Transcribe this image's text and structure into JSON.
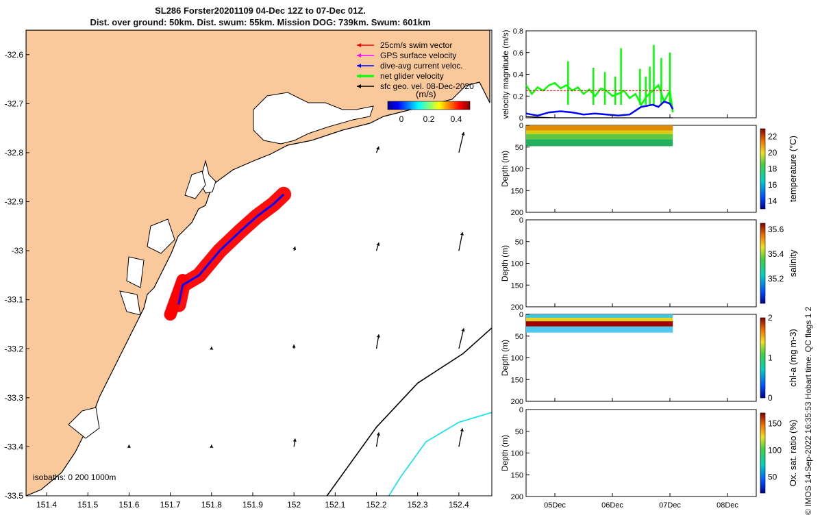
{
  "header": {
    "line1": "SL286 Forster20201109 04-Dec 12Z to 07-Dec 01Z.",
    "line2": "Dist. over ground: 50km. Dist. swum: 55km. Mission DOG: 739km. Swum: 601km"
  },
  "side_note": "© IMOS 14-Sep-2022 16:35:53 Hobart time. QC flags 1  2",
  "colors": {
    "land": "#F9C89B",
    "swim": "#FF0000",
    "gps": "#FF00FF",
    "current": "#0000FF",
    "net": "#00FF00",
    "isobath_200": "#000000",
    "isobath_1000": "#00E5EE"
  },
  "chart_data": [
    {
      "type": "scatter",
      "name": "map",
      "x_ticks": [
        "151.4",
        "151.5",
        "151.6",
        "151.7",
        "151.8",
        "151.9",
        "152",
        "152.1",
        "152.2",
        "152.3",
        "152.4"
      ],
      "y_ticks": [
        "-32.6",
        "-32.7",
        "-32.8",
        "-32.9",
        "-33",
        "-33.1",
        "-33.2",
        "-33.3",
        "-33.4",
        "-33.5"
      ],
      "xlim": [
        151.35,
        152.48
      ],
      "ylim": [
        -33.5,
        -32.55
      ],
      "legend": [
        {
          "label": "25cm/s swim vector",
          "color": "#FF0000"
        },
        {
          "label": "GPS surface velocity",
          "color": "#FF00FF"
        },
        {
          "label": "dive-avg current veloc.",
          "color": "#0000FF"
        },
        {
          "label": "net glider velocity",
          "color": "#00FF00"
        },
        {
          "label": "sfc geo. vel. 08-Dec-2020",
          "color": "#000000"
        }
      ],
      "colorbar": {
        "label": "(m/s)",
        "ticks": [
          "0",
          "0.2",
          "0.4"
        ],
        "range": [
          -0.1,
          0.5
        ]
      },
      "isobaths_label": "isobaths: 0   200  1000m",
      "track": [
        [
          151.72,
          -33.11
        ],
        [
          151.73,
          -33.07
        ],
        [
          151.77,
          -33.05
        ],
        [
          151.82,
          -33.0
        ],
        [
          151.87,
          -32.96
        ],
        [
          151.91,
          -32.93
        ],
        [
          151.95,
          -32.905
        ],
        [
          151.975,
          -32.885
        ]
      ],
      "isobath_200": [
        [
          152.08,
          -33.5
        ],
        [
          152.2,
          -33.36
        ],
        [
          152.3,
          -33.27
        ],
        [
          152.41,
          -33.21
        ],
        [
          152.49,
          -33.15
        ],
        [
          152.48,
          -33.14
        ]
      ],
      "isobath_1000": [
        [
          152.23,
          -33.5
        ],
        [
          152.26,
          -33.46
        ],
        [
          152.32,
          -33.39
        ],
        [
          152.4,
          -33.35
        ],
        [
          152.48,
          -33.33
        ]
      ],
      "geo_vectors": [
        {
          "lon": 152.2,
          "lat": -32.8,
          "u": 0.02,
          "v": 0.03
        },
        {
          "lon": 152.4,
          "lat": -32.8,
          "u": 0.04,
          "v": 0.1
        },
        {
          "lon": 152.0,
          "lat": -33.0,
          "u": 0.01,
          "v": 0.02
        },
        {
          "lon": 152.2,
          "lat": -33.0,
          "u": 0.02,
          "v": 0.04
        },
        {
          "lon": 152.4,
          "lat": -33.0,
          "u": 0.03,
          "v": 0.09
        },
        {
          "lon": 151.8,
          "lat": -33.2,
          "u": 0.0,
          "v": 0.01
        },
        {
          "lon": 152.0,
          "lat": -33.2,
          "u": 0.0,
          "v": 0.02
        },
        {
          "lon": 152.2,
          "lat": -33.2,
          "u": 0.02,
          "v": 0.07
        },
        {
          "lon": 152.4,
          "lat": -33.2,
          "u": 0.04,
          "v": 0.1
        },
        {
          "lon": 151.6,
          "lat": -33.4,
          "u": 0.0,
          "v": 0.01
        },
        {
          "lon": 151.8,
          "lat": -33.4,
          "u": 0.0,
          "v": 0.01
        },
        {
          "lon": 152.0,
          "lat": -33.4,
          "u": 0.01,
          "v": 0.04
        },
        {
          "lon": 152.2,
          "lat": -33.4,
          "u": 0.02,
          "v": 0.07
        },
        {
          "lon": 152.4,
          "lat": -33.4,
          "u": 0.03,
          "v": 0.09
        }
      ]
    },
    {
      "type": "line",
      "name": "velocity",
      "ylabel": "velocity magnitude (m/s)",
      "ylim": [
        0,
        0.8
      ],
      "y_ticks": [
        "0",
        "0.2",
        "0.4",
        "0.6",
        "0.8"
      ],
      "x_range_days": [
        4.5,
        8.5
      ],
      "series": [
        {
          "color": "#00FF00",
          "x": [
            4.5,
            4.6,
            4.7,
            4.8,
            4.9,
            5.0,
            5.1,
            5.2,
            5.3,
            5.4,
            5.5,
            5.6,
            5.7,
            5.8,
            5.9,
            6.0,
            6.1,
            6.2,
            6.3,
            6.4,
            6.5,
            6.6,
            6.7,
            6.8,
            6.9,
            7.0,
            7.05
          ],
          "y": [
            0.3,
            0.22,
            0.28,
            0.25,
            0.3,
            0.32,
            0.27,
            0.3,
            0.25,
            0.28,
            0.22,
            0.26,
            0.2,
            0.27,
            0.25,
            0.2,
            0.22,
            0.25,
            0.18,
            0.22,
            0.12,
            0.2,
            0.25,
            0.3,
            0.15,
            0.25,
            0.05
          ]
        },
        {
          "color": "#0000FF",
          "x": [
            4.5,
            4.7,
            4.9,
            5.1,
            5.3,
            5.5,
            5.7,
            5.9,
            6.1,
            6.3,
            6.5,
            6.7,
            6.8,
            6.9,
            7.0,
            7.05
          ],
          "y": [
            0.04,
            0.02,
            0.05,
            0.06,
            0.05,
            0.03,
            0.04,
            0.03,
            0.02,
            0.03,
            0.1,
            0.12,
            0.1,
            0.15,
            0.13,
            0.08
          ]
        },
        {
          "color": "#FF0000",
          "x": [
            4.5,
            5.0,
            5.5,
            6.0,
            6.5,
            7.0
          ],
          "y": [
            0.25,
            0.25,
            0.25,
            0.25,
            0.25,
            0.25
          ]
        },
        {
          "color": "#000000",
          "x": [
            4.5,
            5.0,
            5.5,
            6.0,
            6.5,
            7.05
          ],
          "y": [
            0.01,
            0.0,
            0.0,
            0.0,
            0.0,
            0.0
          ]
        }
      ],
      "spikes": [
        [
          5.23,
          0.52
        ],
        [
          5.67,
          0.46
        ],
        [
          5.87,
          0.42
        ],
        [
          6.05,
          0.38
        ],
        [
          6.15,
          0.64
        ],
        [
          6.48,
          0.45
        ],
        [
          6.58,
          0.38
        ],
        [
          6.65,
          0.47
        ],
        [
          6.72,
          0.67
        ],
        [
          6.85,
          0.55
        ],
        [
          7.0,
          0.6
        ]
      ]
    },
    {
      "type": "heatmap",
      "name": "temperature",
      "ylabel": "Depth (m)",
      "colorbar_label": "temperature (°C)",
      "colorbar_ticks": [
        "14",
        "16",
        "18",
        "20",
        "22"
      ],
      "clim": [
        13,
        23
      ],
      "ylim": [
        0,
        200
      ],
      "y_ticks": [
        "0",
        "50",
        "100",
        "150",
        "200"
      ],
      "profile": [
        [
          0,
          22
        ],
        [
          10,
          21
        ],
        [
          20,
          19.5
        ],
        [
          30,
          18
        ],
        [
          40,
          16.5
        ],
        [
          50,
          15.5
        ]
      ]
    },
    {
      "type": "heatmap",
      "name": "salinity",
      "ylabel": "Depth (m)",
      "colorbar_label": "salinity",
      "colorbar_ticks": [
        "35.2",
        "35.4",
        "35.6"
      ],
      "clim": [
        35.0,
        35.65
      ],
      "ylim": [
        0,
        200
      ],
      "y_ticks": [
        "0",
        "50",
        "100",
        "150",
        "200"
      ]
    },
    {
      "type": "heatmap",
      "name": "chla",
      "ylabel": "Depth (m)",
      "colorbar_label": "chl-a (mg m-3)",
      "colorbar_ticks": [
        "0",
        "1",
        "2"
      ],
      "clim": [
        0,
        2
      ],
      "ylim": [
        0,
        200
      ],
      "y_ticks": [
        "0",
        "50",
        "100",
        "150",
        "200"
      ]
    },
    {
      "type": "heatmap",
      "name": "oxygen",
      "ylabel": "Depth (m)",
      "colorbar_label": "Ox. sat. ratio (%)",
      "colorbar_ticks": [
        "50",
        "100",
        "150"
      ],
      "clim": [
        20,
        170
      ],
      "ylim": [
        0,
        200
      ],
      "y_ticks": [
        "0",
        "50",
        "100",
        "150",
        "200"
      ],
      "x_ticks": [
        "05Dec",
        "06Dec",
        "07Dec",
        "08Dec"
      ]
    }
  ]
}
